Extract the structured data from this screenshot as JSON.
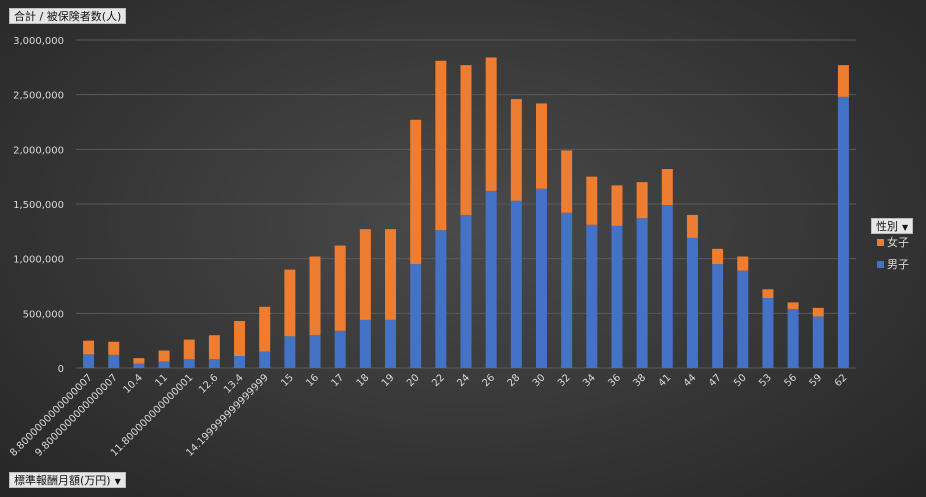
{
  "field_buttons": {
    "values": "合計 / 被保険者数(人)",
    "axis": "標準報酬月額(万円)",
    "legend": "性別"
  },
  "chart_data": {
    "type": "bar",
    "stacked": true,
    "categories": [
      "8.8000000000000007",
      "9.8000000000000007",
      "10.4",
      "11",
      "11.800000000000001",
      "12.6",
      "13.4",
      "14.199999999999999",
      "15",
      "16",
      "17",
      "18",
      "19",
      "20",
      "22",
      "24",
      "26",
      "28",
      "30",
      "32",
      "34",
      "36",
      "38",
      "41",
      "44",
      "47",
      "50",
      "53",
      "56",
      "59",
      "62"
    ],
    "tick_labels": [
      "8.8000000000000007",
      "9.8000000000000007",
      "10.4",
      "11",
      "11.800000000000001",
      "12.6",
      "13.4",
      "14.199999999999999",
      "15",
      "16",
      "17",
      "18",
      "19",
      "20",
      "22",
      "24",
      "26",
      "28",
      "30",
      "32",
      "34",
      "36",
      "38",
      "41",
      "44",
      "47",
      "50",
      "53",
      "56",
      "59",
      "62"
    ],
    "series": [
      {
        "name": "男子",
        "color": "#4472c4",
        "values": [
          125000,
          120000,
          40000,
          60000,
          80000,
          80000,
          110000,
          150000,
          290000,
          300000,
          340000,
          440000,
          440000,
          950000,
          1260000,
          1400000,
          1620000,
          1530000,
          1640000,
          1420000,
          1310000,
          1300000,
          1370000,
          1490000,
          1190000,
          950000,
          890000,
          640000,
          540000,
          470000,
          2480000
        ]
      },
      {
        "name": "女子",
        "color": "#ed7d31",
        "values": [
          125000,
          120000,
          50000,
          100000,
          180000,
          220000,
          320000,
          410000,
          610000,
          720000,
          780000,
          830000,
          830000,
          1320000,
          1550000,
          1370000,
          1220000,
          930000,
          780000,
          570000,
          440000,
          370000,
          330000,
          330000,
          210000,
          140000,
          130000,
          80000,
          60000,
          80000,
          290000
        ]
      }
    ],
    "legend": [
      "女子",
      "男子"
    ],
    "ylim": [
      0,
      3000000
    ],
    "yticks": [
      0,
      500000,
      1000000,
      1500000,
      2000000,
      2500000,
      3000000
    ],
    "ytick_labels": [
      "0",
      "500,000",
      "1,000,000",
      "1,500,000",
      "2,000,000",
      "2,500,000",
      "3,000,000"
    ],
    "grid": true,
    "legend_position": "right",
    "title": "",
    "xlabel": "標準報酬月額(万円)",
    "ylabel": "合計 / 被保険者数(人)"
  }
}
